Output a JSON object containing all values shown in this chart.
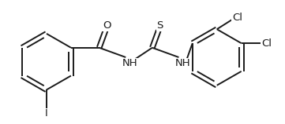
{
  "bg_color": "#ffffff",
  "line_color": "#1a1a1a",
  "line_width": 1.4,
  "font_size": 9.5,
  "figsize": [
    3.61,
    1.58
  ],
  "dpi": 100,
  "xlim": [
    0,
    10.0
  ],
  "ylim": [
    0,
    4.38
  ]
}
